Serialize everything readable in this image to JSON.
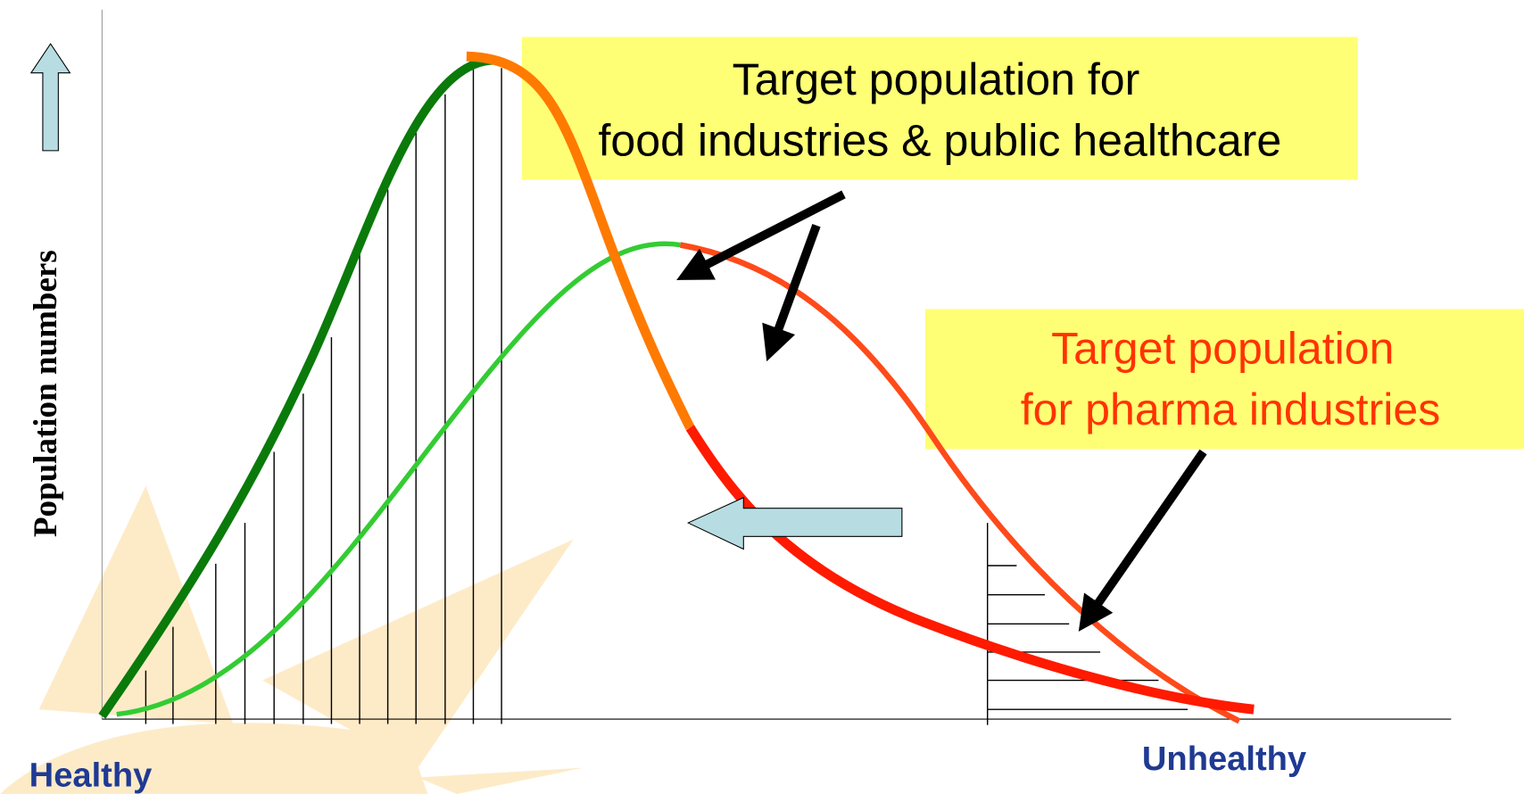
{
  "y_axis_label": "Population numbers",
  "callouts": [
    {
      "lines": [
        "Target population for",
        "food industries & public healthcare"
      ]
    },
    {
      "lines": [
        "Target population",
        "for pharma industries"
      ]
    }
  ],
  "x_axis": {
    "left_label": "Healthy",
    "right_label": "Unhealthy"
  }
}
